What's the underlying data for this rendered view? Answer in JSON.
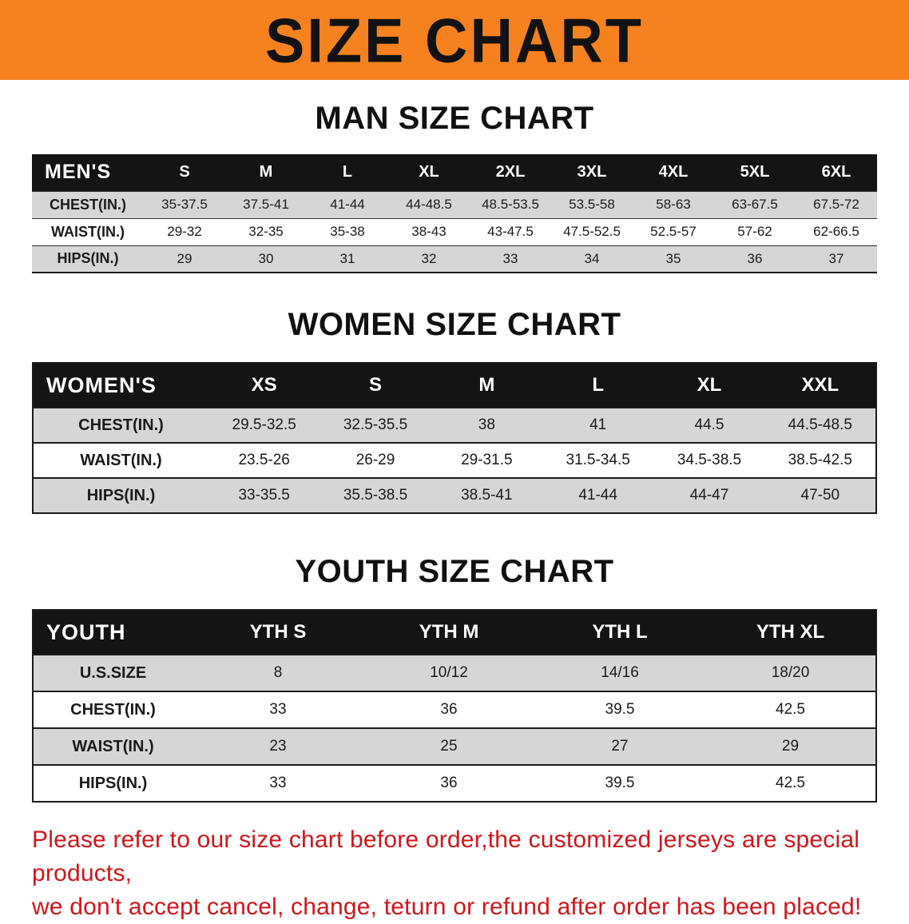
{
  "banner": {
    "title": "SIZE CHART"
  },
  "chart_data": [
    {
      "type": "table",
      "title": "MAN SIZE CHART",
      "header_label": "MEN'S",
      "columns": [
        "S",
        "M",
        "L",
        "XL",
        "2XL",
        "3XL",
        "4XL",
        "5XL",
        "6XL"
      ],
      "rows": [
        {
          "label": "CHEST(IN.)",
          "values": [
            "35-37.5",
            "37.5-41",
            "41-44",
            "44-48.5",
            "48.5-53.5",
            "53.5-58",
            "58-63",
            "63-67.5",
            "67.5-72"
          ]
        },
        {
          "label": "WAIST(IN.)",
          "values": [
            "29-32",
            "32-35",
            "35-38",
            "38-43",
            "43-47.5",
            "47.5-52.5",
            "52.5-57",
            "57-62",
            "62-66.5"
          ]
        },
        {
          "label": "HIPS(IN.)",
          "values": [
            "29",
            "30",
            "31",
            "32",
            "33",
            "34",
            "35",
            "36",
            "37"
          ]
        }
      ]
    },
    {
      "type": "table",
      "title": "WOMEN SIZE CHART",
      "header_label": "WOMEN'S",
      "columns": [
        "XS",
        "S",
        "M",
        "L",
        "XL",
        "XXL"
      ],
      "rows": [
        {
          "label": "CHEST(IN.)",
          "values": [
            "29.5-32.5",
            "32.5-35.5",
            "38",
            "41",
            "44.5",
            "44.5-48.5"
          ]
        },
        {
          "label": "WAIST(IN.)",
          "values": [
            "23.5-26",
            "26-29",
            "29-31.5",
            "31.5-34.5",
            "34.5-38.5",
            "38.5-42.5"
          ]
        },
        {
          "label": "HIPS(IN.)",
          "values": [
            "33-35.5",
            "35.5-38.5",
            "38.5-41",
            "41-44",
            "44-47",
            "47-50"
          ]
        }
      ]
    },
    {
      "type": "table",
      "title": "YOUTH SIZE CHART",
      "header_label": "YOUTH",
      "columns": [
        "YTH S",
        "YTH M",
        "YTH L",
        "YTH XL"
      ],
      "rows": [
        {
          "label": "U.S.SIZE",
          "values": [
            "8",
            "10/12",
            "14/16",
            "18/20"
          ]
        },
        {
          "label": "CHEST(IN.)",
          "values": [
            "33",
            "36",
            "39.5",
            "42.5"
          ]
        },
        {
          "label": "WAIST(IN.)",
          "values": [
            "23",
            "25",
            "27",
            "29"
          ]
        },
        {
          "label": "HIPS(IN.)",
          "values": [
            "33",
            "36",
            "39.5",
            "42.5"
          ]
        }
      ]
    }
  ],
  "footer": {
    "line1": "Please refer to our size chart before order,the customized jerseys are special products,",
    "line2": "we don't accept cancel, change, teturn or refund after order has been placed!"
  },
  "colors": {
    "banner_bg": "#f5821f",
    "header_bg": "#141414",
    "row_alt": "#d6d6d6",
    "footer_text": "#d01519"
  }
}
